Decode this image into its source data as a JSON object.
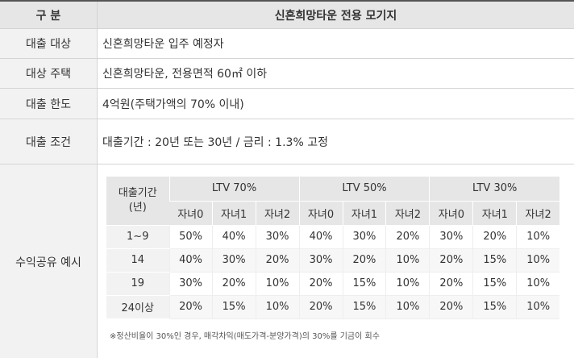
{
  "header": {
    "col1": "구 분",
    "col2": "신혼희망타운 전용 모기지"
  },
  "rows": [
    {
      "label": "대출 대상",
      "value": "신혼희망타운 입주 예정자"
    },
    {
      "label": "대상 주택",
      "value": "신혼희망타운, 전용면적 60㎡ 이하"
    },
    {
      "label": "대출 한도",
      "value": "4억원(주택가액의 70% 이내)"
    },
    {
      "label": "대출 조건",
      "value": "대출기간 : 20년 또는 30년 / 금리 : 1.3% 고정"
    }
  ],
  "sharing": {
    "label": "수익공유 예시",
    "period_header": "대출기간\n(년)",
    "ltv_groups": [
      "LTV 70%",
      "LTV 50%",
      "LTV 30%"
    ],
    "child_cols": [
      "자녀0",
      "자녀1",
      "자녀2"
    ],
    "rows": [
      {
        "period": "1~9",
        "values": [
          "50%",
          "40%",
          "30%",
          "40%",
          "30%",
          "20%",
          "30%",
          "20%",
          "10%"
        ]
      },
      {
        "period": "14",
        "values": [
          "40%",
          "30%",
          "20%",
          "30%",
          "20%",
          "10%",
          "20%",
          "15%",
          "10%"
        ]
      },
      {
        "period": "19",
        "values": [
          "30%",
          "20%",
          "10%",
          "20%",
          "15%",
          "10%",
          "20%",
          "15%",
          "10%"
        ]
      },
      {
        "period": "24이상",
        "values": [
          "20%",
          "15%",
          "10%",
          "20%",
          "15%",
          "10%",
          "20%",
          "15%",
          "10%"
        ]
      }
    ],
    "note": "※정산비율이 30%인 경우, 매각차익(매도가격-분양가격)의 30%를 기금이 회수"
  }
}
